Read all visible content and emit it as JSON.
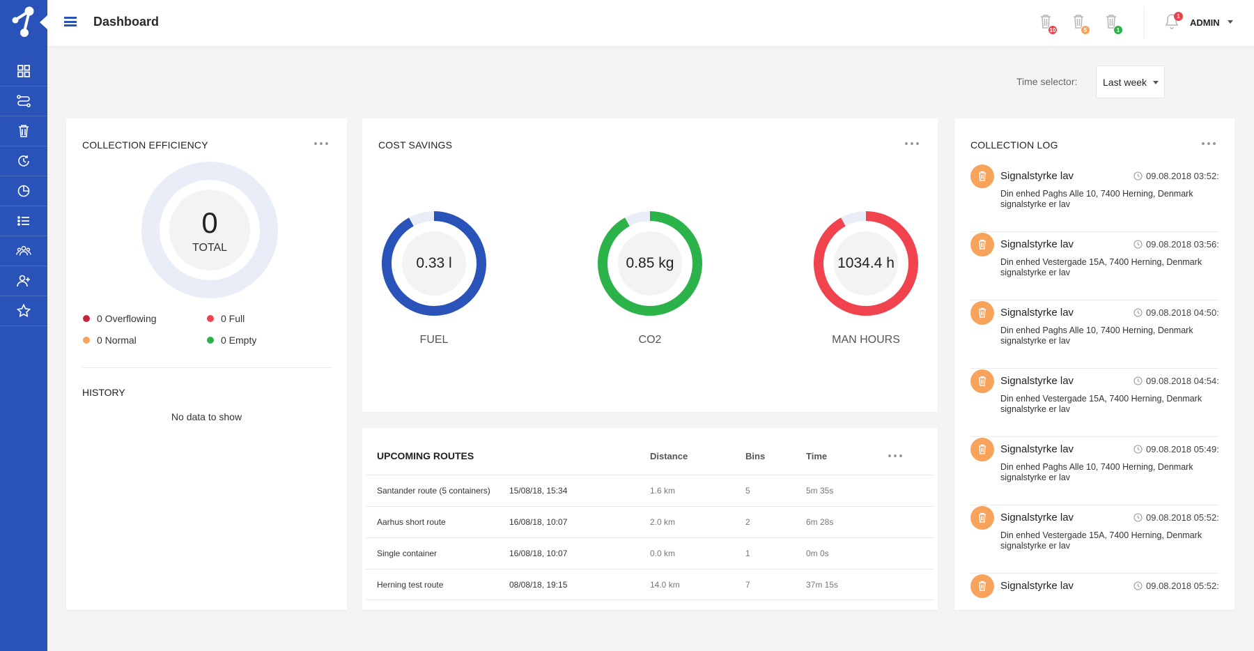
{
  "header": {
    "title": "Dashboard",
    "bins": [
      {
        "badge": "10",
        "color": "#e8434e"
      },
      {
        "badge": "5",
        "color": "#f7a35c"
      },
      {
        "badge": "1",
        "color": "#2bb34a"
      }
    ],
    "notifications": "1",
    "user": "ADMIN"
  },
  "sidebar": {
    "items": [
      "grid-icon",
      "routes-icon",
      "bin-icon",
      "history-icon",
      "pie-chart-icon",
      "list-icon",
      "group-icon",
      "add-user-icon",
      "star-icon"
    ]
  },
  "time_selector": {
    "label": "Time selector:",
    "value": "Last week"
  },
  "efficiency": {
    "title": "COLLECTION EFFICIENCY",
    "total_value": "0",
    "total_label": "TOTAL",
    "legend": [
      {
        "label": "0 Overflowing",
        "color": "#c8273a"
      },
      {
        "label": "0 Full",
        "color": "#f0434e"
      },
      {
        "label": "0 Normal",
        "color": "#f7a35c"
      },
      {
        "label": "0 Empty",
        "color": "#2bb34a"
      }
    ],
    "history_title": "HISTORY",
    "history_empty": "No data to show"
  },
  "cost": {
    "title": "COST SAVINGS",
    "donuts": [
      {
        "value": "0.33 l",
        "label": "FUEL",
        "color": "#2a53b9",
        "fraction": 0.92
      },
      {
        "value": "0.85 kg",
        "label": "CO2",
        "color": "#2bb34a",
        "fraction": 0.92
      },
      {
        "value": "1034.4 h",
        "label": "MAN HOURS",
        "color": "#f0434e",
        "fraction": 0.92
      }
    ]
  },
  "routes": {
    "title": "UPCOMING ROUTES",
    "headers": {
      "distance": "Distance",
      "bins": "Bins",
      "time": "Time"
    },
    "rows": [
      {
        "name": "Santander route (5 containers)",
        "date": "15/08/18, 15:34",
        "distance": "1.6 km",
        "bins": "5",
        "time": "5m 35s"
      },
      {
        "name": "Aarhus short route",
        "date": "16/08/18, 10:07",
        "distance": "2.0 km",
        "bins": "2",
        "time": "6m 28s"
      },
      {
        "name": "Single container",
        "date": "16/08/18, 10:07",
        "distance": "0.0 km",
        "bins": "1",
        "time": "0m 0s"
      },
      {
        "name": "Herning test route",
        "date": "08/08/18, 19:15",
        "distance": "14.0 km",
        "bins": "7",
        "time": "37m 15s"
      }
    ]
  },
  "log": {
    "title": "COLLECTION LOG",
    "items": [
      {
        "title": "Signalstyrke lav",
        "time": "09.08.2018 03:52:",
        "line1": "Din enhed Paghs Alle 10, 7400 Herning, Denmark",
        "line2": "signalstyrke er lav"
      },
      {
        "title": "Signalstyrke lav",
        "time": "09.08.2018 03:56:",
        "line1": "Din enhed Vestergade 15A, 7400 Herning, Denmark",
        "line2": "signalstyrke er lav"
      },
      {
        "title": "Signalstyrke lav",
        "time": "09.08.2018 04:50:",
        "line1": "Din enhed Paghs Alle 10, 7400 Herning, Denmark",
        "line2": "signalstyrke er lav"
      },
      {
        "title": "Signalstyrke lav",
        "time": "09.08.2018 04:54:",
        "line1": "Din enhed Vestergade 15A, 7400 Herning, Denmark",
        "line2": "signalstyrke er lav"
      },
      {
        "title": "Signalstyrke lav",
        "time": "09.08.2018 05:49:",
        "line1": "Din enhed Paghs Alle 10, 7400 Herning, Denmark",
        "line2": "signalstyrke er lav"
      },
      {
        "title": "Signalstyrke lav",
        "time": "09.08.2018 05:52:",
        "line1": "Din enhed Vestergade 15A, 7400 Herning, Denmark",
        "line2": "signalstyrke er lav"
      },
      {
        "title": "Signalstyrke lav",
        "time": "09.08.2018 05:52:",
        "line1": "",
        "line2": ""
      }
    ]
  }
}
